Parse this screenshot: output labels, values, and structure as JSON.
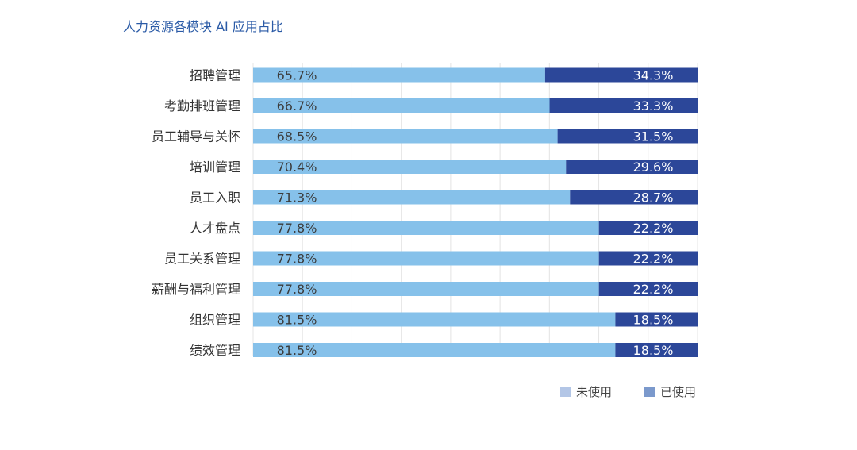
{
  "title": "人力资源各模块 AI 应用占比",
  "colors": {
    "unused": "#86c1ea",
    "used": "#2c4799",
    "legend_unused": "#b3c6e6",
    "legend_used": "#7b99cc",
    "title": "#2a5aa6"
  },
  "legend": [
    {
      "label": "未使用",
      "series": "unused"
    },
    {
      "label": "已使用",
      "series": "used"
    }
  ],
  "chart_data": {
    "type": "bar",
    "orientation": "horizontal",
    "stacked": true,
    "percent": true,
    "title": "人力资源各模块 AI 应用占比",
    "categories": [
      "招聘管理",
      "考勤排班管理",
      "员工辅导与关怀",
      "培训管理",
      "员工入职",
      "人才盘点",
      "员工关系管理",
      "薪酬与福利管理",
      "组织管理",
      "绩效管理"
    ],
    "series": [
      {
        "name": "未使用",
        "values": [
          65.7,
          66.7,
          68.5,
          70.4,
          71.3,
          77.8,
          77.8,
          77.8,
          81.5,
          81.5
        ],
        "labels": [
          "65.7%",
          "66.7%",
          "68.5%",
          "70.4%",
          "71.3%",
          "77.8%",
          "77.8%",
          "77.8%",
          "81.5%",
          "81.5%"
        ]
      },
      {
        "name": "已使用",
        "values": [
          34.3,
          33.3,
          31.5,
          29.6,
          28.7,
          22.2,
          22.2,
          22.2,
          18.5,
          18.5
        ],
        "labels": [
          "34.3%",
          "33.3%",
          "31.5%",
          "29.6%",
          "28.7%",
          "22.2%",
          "22.2%",
          "22.2%",
          "18.5%",
          "18.5%"
        ]
      }
    ],
    "xlim": [
      0,
      100
    ],
    "grid": true,
    "legend_position": "bottom-right"
  }
}
